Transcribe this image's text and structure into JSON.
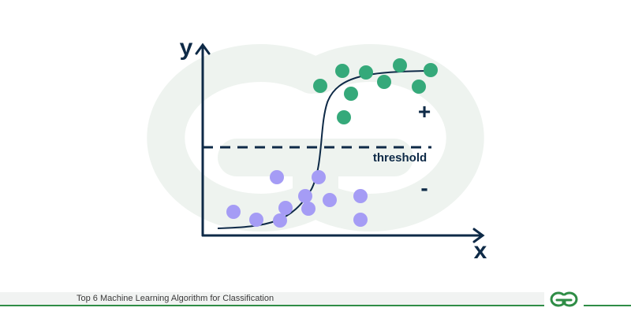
{
  "diagram": {
    "y_axis_label": "y",
    "x_axis_label": "x",
    "threshold_label": "threshold",
    "positive_label": "+",
    "negative_label": "-",
    "colors": {
      "axis": "#0e2a47",
      "positive_points": "#35a97a",
      "negative_points": "#a59cf5",
      "watermark": "#eef3ef"
    }
  },
  "footer": {
    "caption": "Top 6 Machine Learning Algorithm for Classification",
    "logo": "geeksforgeeks-logo-icon",
    "colors": {
      "line": "#2f8d46",
      "bar": "#f1f3f2"
    }
  }
}
